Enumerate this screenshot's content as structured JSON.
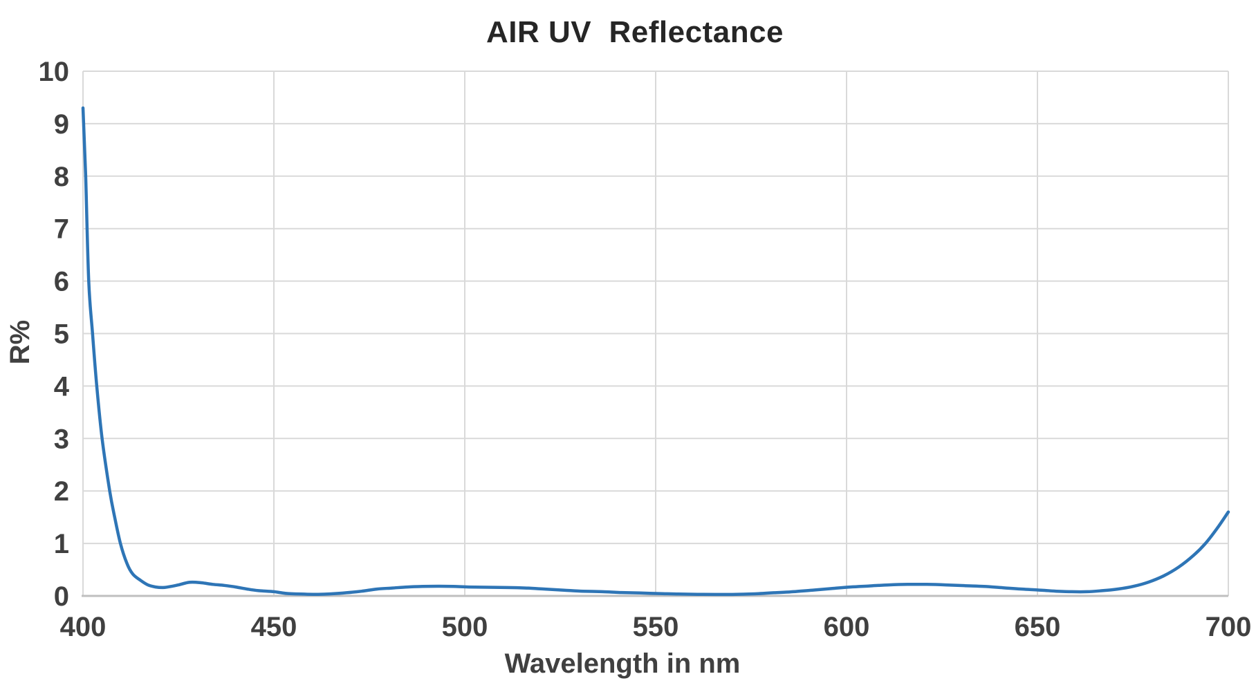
{
  "chart_data": {
    "type": "line",
    "title": "AIR UV  Reflectance",
    "xlabel": "Wavelength in nm",
    "ylabel": "R%",
    "xlim": [
      400,
      700
    ],
    "ylim": [
      0,
      10
    ],
    "xticks": [
      400,
      450,
      500,
      550,
      600,
      650,
      700
    ],
    "yticks": [
      0,
      1,
      2,
      3,
      4,
      5,
      6,
      7,
      8,
      9,
      10
    ],
    "grid": true,
    "legend_position": "none",
    "line_color": "#2e75b6",
    "line_width": 4.5,
    "grid_color": "#d9d9d9",
    "axis_color": "#bfbfbf",
    "tick_color": "#404040",
    "title_color": "#262626",
    "series": [
      {
        "name": "AIR UV Reflectance",
        "points": [
          [
            400,
            9.3
          ],
          [
            400.7,
            8.0
          ],
          [
            401.5,
            6.0
          ],
          [
            402.5,
            5.0
          ],
          [
            403.6,
            4.0
          ],
          [
            405,
            3.0
          ],
          [
            407,
            2.0
          ],
          [
            408.3,
            1.5
          ],
          [
            409.8,
            1.0
          ],
          [
            411.5,
            0.62
          ],
          [
            413,
            0.42
          ],
          [
            415,
            0.3
          ],
          [
            417,
            0.21
          ],
          [
            419,
            0.17
          ],
          [
            421,
            0.16
          ],
          [
            423,
            0.18
          ],
          [
            425,
            0.21
          ],
          [
            428,
            0.26
          ],
          [
            431,
            0.25
          ],
          [
            434,
            0.22
          ],
          [
            437,
            0.2
          ],
          [
            440,
            0.17
          ],
          [
            443,
            0.13
          ],
          [
            446,
            0.1
          ],
          [
            450,
            0.08
          ],
          [
            453,
            0.05
          ],
          [
            457,
            0.035
          ],
          [
            461,
            0.03
          ],
          [
            465,
            0.04
          ],
          [
            469,
            0.06
          ],
          [
            473,
            0.09
          ],
          [
            477,
            0.13
          ],
          [
            481,
            0.15
          ],
          [
            485,
            0.17
          ],
          [
            489,
            0.18
          ],
          [
            493,
            0.185
          ],
          [
            497,
            0.18
          ],
          [
            501,
            0.17
          ],
          [
            506,
            0.165
          ],
          [
            511,
            0.16
          ],
          [
            516,
            0.15
          ],
          [
            521,
            0.13
          ],
          [
            526,
            0.11
          ],
          [
            531,
            0.09
          ],
          [
            536,
            0.08
          ],
          [
            541,
            0.065
          ],
          [
            546,
            0.055
          ],
          [
            551,
            0.045
          ],
          [
            556,
            0.035
          ],
          [
            561,
            0.03
          ],
          [
            566,
            0.028
          ],
          [
            571,
            0.03
          ],
          [
            576,
            0.04
          ],
          [
            581,
            0.06
          ],
          [
            586,
            0.08
          ],
          [
            591,
            0.11
          ],
          [
            596,
            0.14
          ],
          [
            601,
            0.17
          ],
          [
            606,
            0.19
          ],
          [
            611,
            0.21
          ],
          [
            616,
            0.22
          ],
          [
            621,
            0.22
          ],
          [
            626,
            0.21
          ],
          [
            631,
            0.195
          ],
          [
            636,
            0.18
          ],
          [
            641,
            0.155
          ],
          [
            646,
            0.13
          ],
          [
            651,
            0.11
          ],
          [
            655,
            0.09
          ],
          [
            659,
            0.08
          ],
          [
            663,
            0.08
          ],
          [
            667,
            0.1
          ],
          [
            671,
            0.13
          ],
          [
            675,
            0.18
          ],
          [
            679,
            0.26
          ],
          [
            683,
            0.38
          ],
          [
            687,
            0.55
          ],
          [
            691,
            0.78
          ],
          [
            694,
            1.0
          ],
          [
            697,
            1.28
          ],
          [
            700,
            1.6
          ]
        ]
      }
    ]
  }
}
